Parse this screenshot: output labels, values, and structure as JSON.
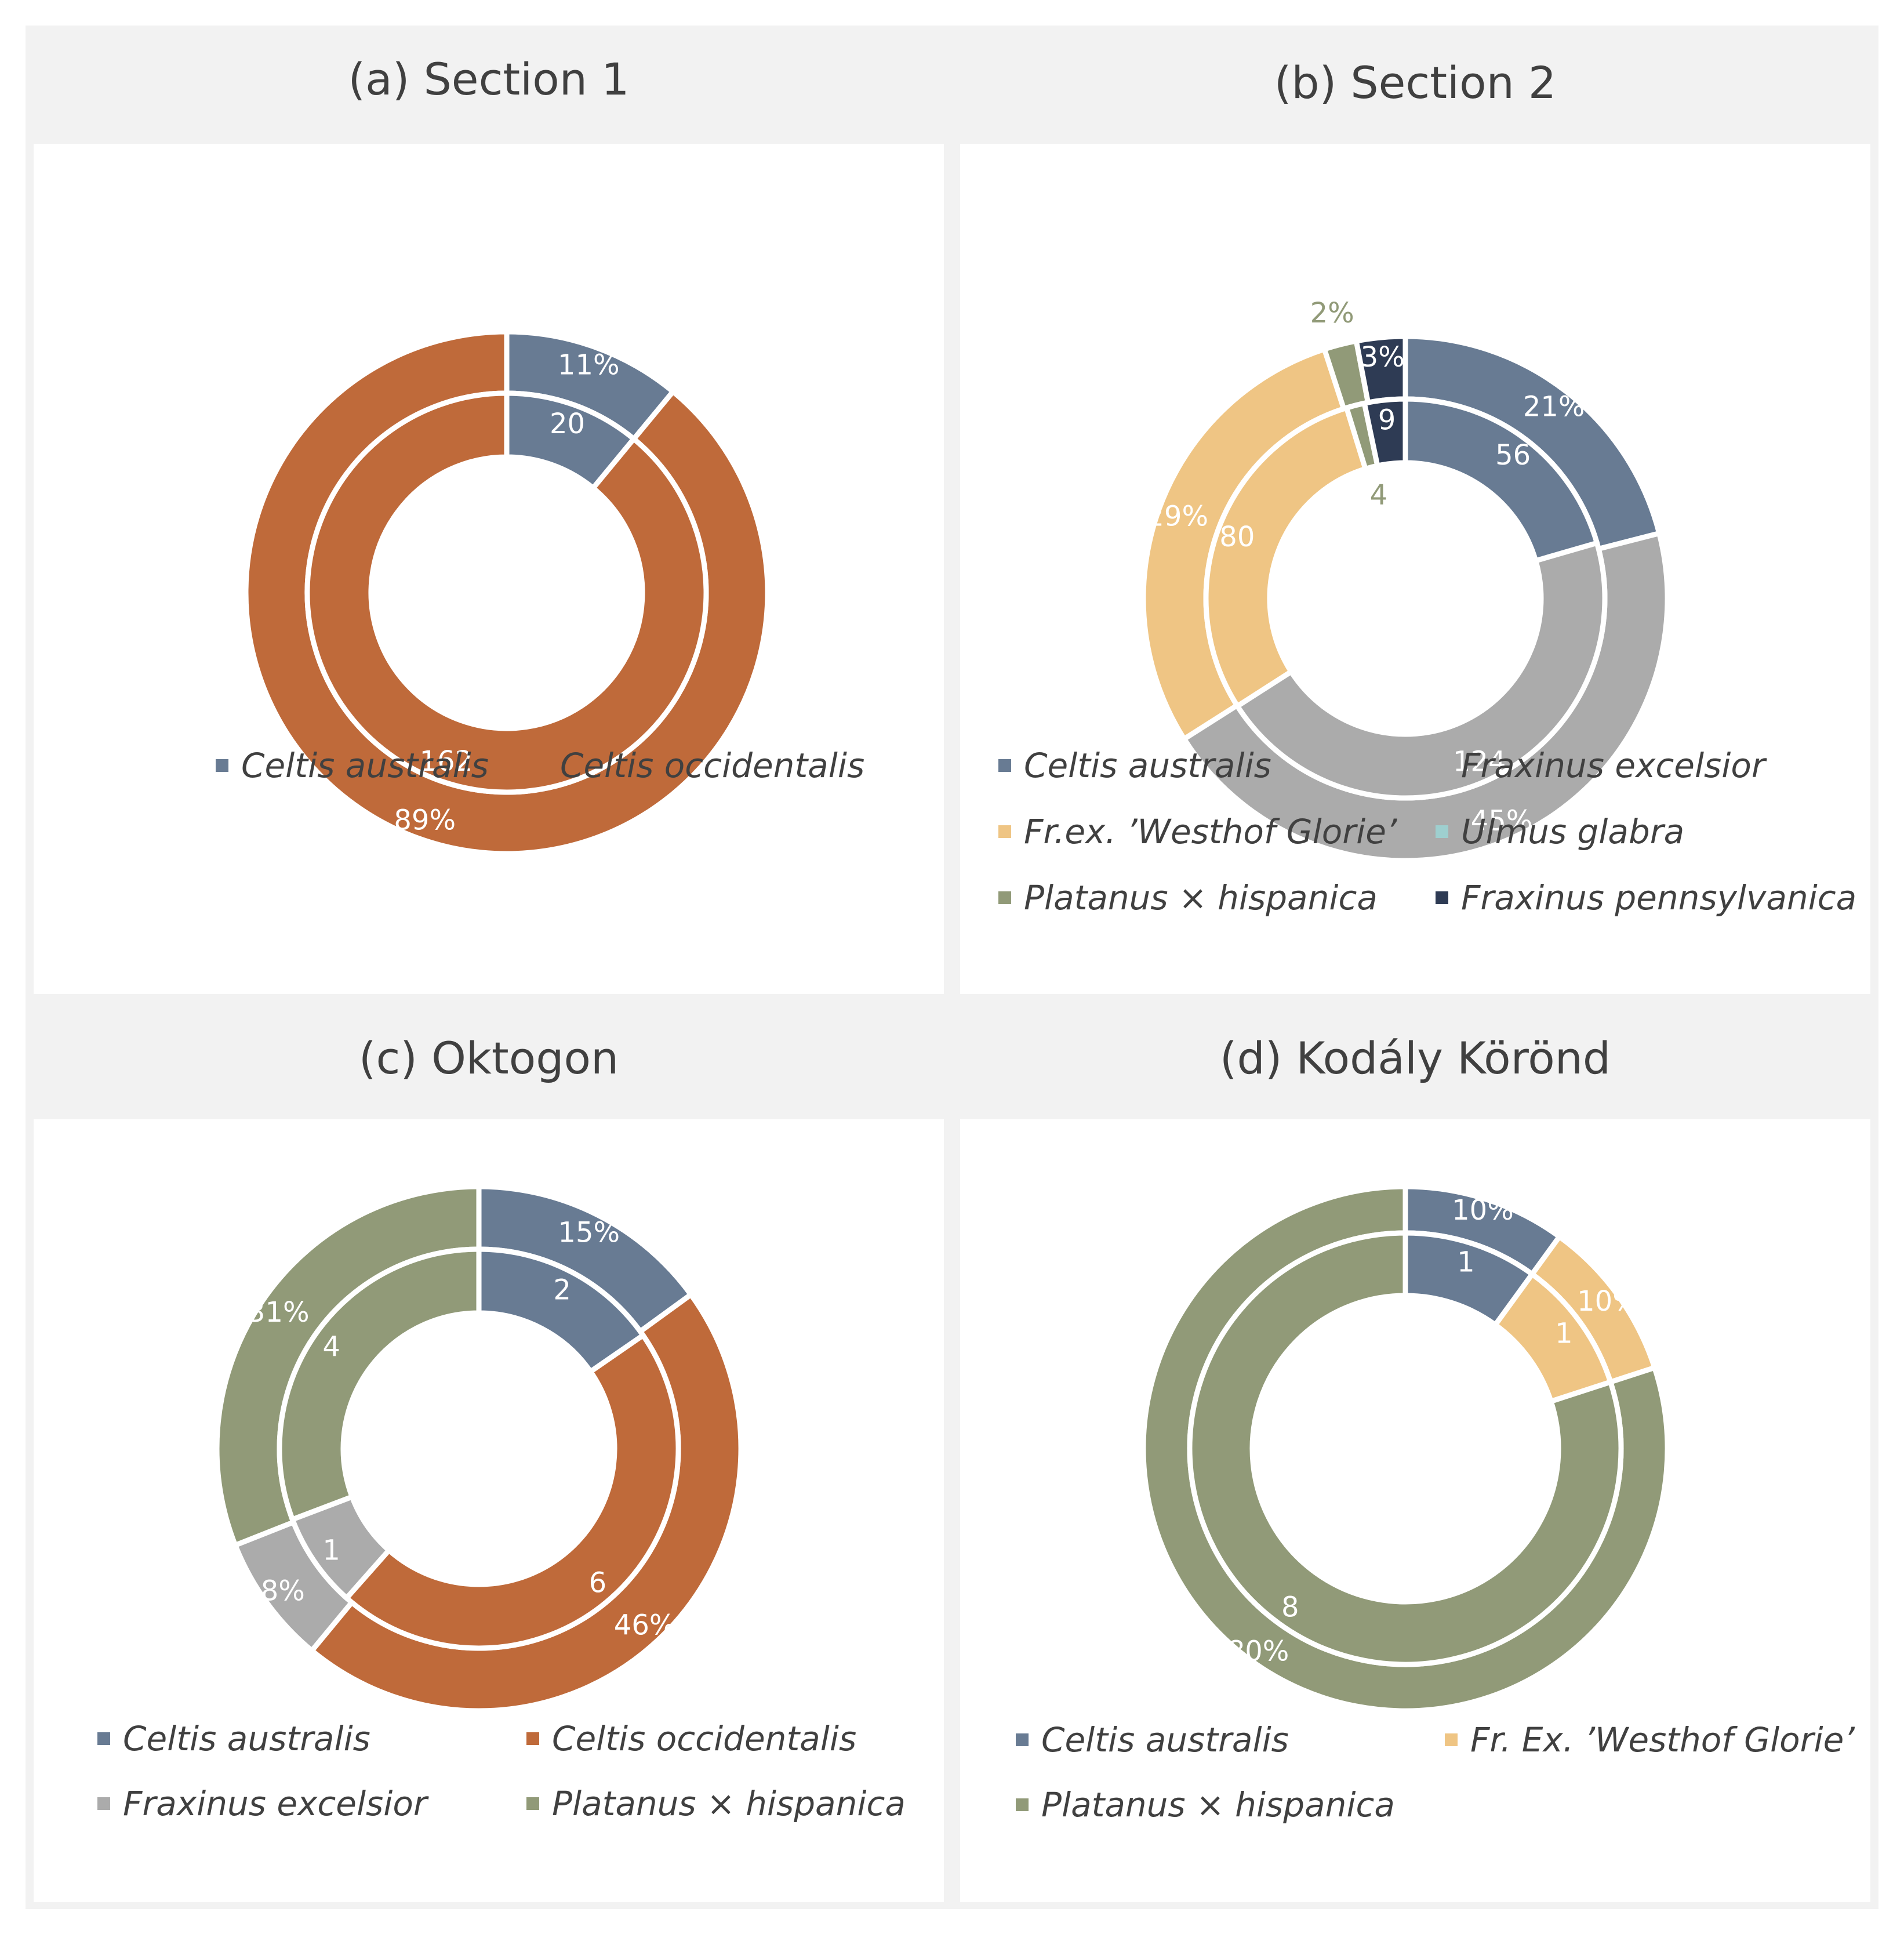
{
  "colors": {
    "celtis_australis": "#687b93",
    "celtis_occidentalis": "#bf6a3a",
    "fraxinus_excelsior": "#ababab",
    "westhof_glorie": "#efc584",
    "ulmus_glabra": "#9ecfcf",
    "platanus": "#919a78",
    "fraxinus_pennsylvanica": "#2e3b54"
  },
  "chart_data": [
    {
      "type": "pie",
      "subtype": "double-donut",
      "title": "(a) Section 1",
      "outer": {
        "values": [
          11,
          89
        ],
        "labels": [
          "11%",
          "89%"
        ],
        "colors": [
          "#687b93",
          "#bf6a3a"
        ],
        "label_colors": [
          "#ffffff",
          "#ffffff"
        ]
      },
      "inner": {
        "values": [
          20,
          162
        ],
        "labels": [
          "20",
          "162"
        ],
        "colors": [
          "#687b93",
          "#bf6a3a"
        ],
        "label_colors": [
          "#ffffff",
          "#ffffff"
        ]
      },
      "legend": [
        {
          "label": "Celtis australis",
          "color": "#687b93"
        },
        {
          "label": "Celtis occidentalis",
          "color": "#bf6a3a"
        }
      ]
    },
    {
      "type": "pie",
      "subtype": "double-donut",
      "title": "(b) Section 2",
      "outer": {
        "values": [
          21,
          45,
          29,
          2,
          3
        ],
        "labels": [
          "21%",
          "45%",
          "29%",
          "2%",
          "3%"
        ],
        "colors": [
          "#687b93",
          "#ababab",
          "#efc584",
          "#919a78",
          "#2e3b54"
        ],
        "label_colors": [
          "#ffffff",
          "#ffffff",
          "#ffffff",
          "#919a78",
          "#ffffff"
        ]
      },
      "inner": {
        "values": [
          56,
          124,
          80,
          4,
          9
        ],
        "labels": [
          "56",
          "124",
          "80",
          "4",
          "9"
        ],
        "colors": [
          "#687b93",
          "#ababab",
          "#efc584",
          "#919a78",
          "#2e3b54"
        ],
        "label_colors": [
          "#ffffff",
          "#ffffff",
          "#ffffff",
          "#919a78",
          "#ffffff"
        ]
      },
      "legend": [
        {
          "label": "Celtis australis",
          "color": "#687b93"
        },
        {
          "label": "Fraxinus excelsior",
          "color": "#ababab"
        },
        {
          "label": "Fr.ex. ’Westhof Glorie’",
          "color": "#efc584"
        },
        {
          "label": "Ulmus glabra",
          "color": "#9ecfcf"
        },
        {
          "label": "Platanus × hispanica",
          "color": "#919a78"
        },
        {
          "label": "Fraxinus pennsylvanica",
          "color": "#2e3b54"
        }
      ]
    },
    {
      "type": "pie",
      "subtype": "double-donut",
      "title": "(c) Oktogon",
      "outer": {
        "values": [
          15,
          46,
          8,
          31
        ],
        "labels": [
          "15%",
          "46%",
          "8%",
          "31%"
        ],
        "colors": [
          "#687b93",
          "#bf6a3a",
          "#ababab",
          "#919a78"
        ],
        "label_colors": [
          "#ffffff",
          "#ffffff",
          "#ffffff",
          "#ffffff"
        ]
      },
      "inner": {
        "values": [
          2,
          6,
          1,
          4
        ],
        "labels": [
          "2",
          "6",
          "1",
          "4"
        ],
        "colors": [
          "#687b93",
          "#bf6a3a",
          "#ababab",
          "#919a78"
        ],
        "label_colors": [
          "#ffffff",
          "#ffffff",
          "#ffffff",
          "#ffffff"
        ]
      },
      "legend": [
        {
          "label": "Celtis australis",
          "color": "#687b93"
        },
        {
          "label": "Celtis occidentalis",
          "color": "#bf6a3a"
        },
        {
          "label": "Fraxinus excelsior",
          "color": "#ababab"
        },
        {
          "label": "Platanus × hispanica",
          "color": "#919a78"
        }
      ]
    },
    {
      "type": "pie",
      "subtype": "double-donut",
      "title": "(d) Kodály Körönd",
      "outer": {
        "values": [
          10,
          10,
          80
        ],
        "labels": [
          "10%",
          "10%",
          "80%"
        ],
        "colors": [
          "#687b93",
          "#efc584",
          "#919a78"
        ],
        "label_colors": [
          "#ffffff",
          "#ffffff",
          "#ffffff"
        ]
      },
      "inner": {
        "values": [
          1,
          1,
          8
        ],
        "labels": [
          "1",
          "1",
          "8"
        ],
        "colors": [
          "#687b93",
          "#efc584",
          "#919a78"
        ],
        "label_colors": [
          "#ffffff",
          "#ffffff",
          "#ffffff"
        ]
      },
      "legend": [
        {
          "label": "Celtis australis",
          "color": "#687b93"
        },
        {
          "label": "Fr. Ex. ’Westhof Glorie’",
          "color": "#efc584"
        },
        {
          "label": "Platanus × hispanica",
          "color": "#919a78"
        }
      ]
    }
  ]
}
